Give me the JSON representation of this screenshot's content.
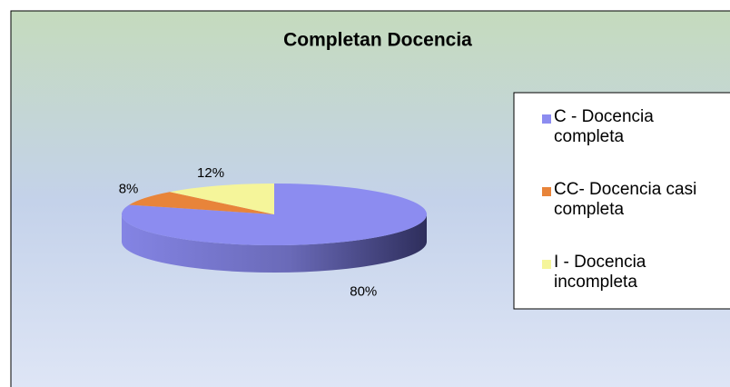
{
  "chart_data": {
    "type": "pie",
    "title": "Completan Docencia",
    "categories": [
      "C - Docencia completa",
      "CC- Docencia casi completa",
      "I - Docencia incompleta"
    ],
    "values": [
      80,
      8,
      12
    ],
    "value_labels": [
      "80%",
      "8%",
      "12%"
    ],
    "colors": [
      "#8c8cf0",
      "#e8843a",
      "#f5f59a"
    ],
    "legend": "right"
  }
}
